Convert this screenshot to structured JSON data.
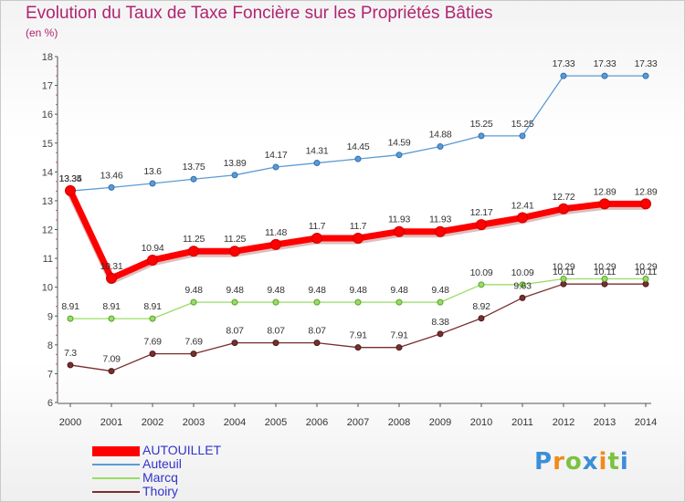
{
  "chart_data": {
    "type": "line",
    "title": "Evolution du Taux de Taxe Foncière sur les Propriétés Bâties",
    "subtitle": "(en %)",
    "xlabel": "",
    "ylabel": "",
    "ylim": [
      6,
      18
    ],
    "yticks": [
      "6",
      "7",
      "8",
      "9",
      "10",
      "11",
      "12",
      "13",
      "14",
      "15",
      "16",
      "17",
      "18"
    ],
    "grid": false,
    "categories": [
      "2000",
      "2001",
      "2002",
      "2003",
      "2004",
      "2005",
      "2006",
      "2007",
      "2008",
      "2009",
      "2010",
      "2011",
      "2012",
      "2013",
      "2014"
    ],
    "series": [
      {
        "name": "AUTOUILLET",
        "color": "#ff0000",
        "values": [
          13.35,
          10.31,
          10.94,
          11.25,
          11.25,
          11.48,
          11.7,
          11.7,
          11.93,
          11.93,
          12.17,
          12.41,
          12.72,
          12.89,
          12.89
        ],
        "labels": [
          "13.35",
          "10.31",
          "10.94",
          "11.25",
          "11.25",
          "11.48",
          "11.7",
          "11.7",
          "11.93",
          "11.93",
          "12.17",
          "12.41",
          "12.72",
          "12.89",
          "12.89"
        ]
      },
      {
        "name": "Auteuil",
        "color": "#5b9bd5",
        "values": [
          13.34,
          13.46,
          13.6,
          13.75,
          13.89,
          14.17,
          14.31,
          14.45,
          14.59,
          14.88,
          15.25,
          15.25,
          17.33,
          17.33,
          17.33
        ],
        "labels": [
          "13.34",
          "13.46",
          "13.6",
          "13.75",
          "13.89",
          "14.17",
          "14.31",
          "14.45",
          "14.59",
          "14.88",
          "15.25",
          "15.25",
          "17.33",
          "17.33",
          "17.33"
        ]
      },
      {
        "name": "Marcq",
        "color": "#99dd66",
        "values": [
          8.91,
          8.91,
          8.91,
          9.48,
          9.48,
          9.48,
          9.48,
          9.48,
          9.48,
          9.48,
          10.09,
          10.09,
          10.29,
          10.29,
          10.29
        ],
        "labels": [
          "8.91",
          "8.91",
          "8.91",
          "9.48",
          "9.48",
          "9.48",
          "9.48",
          "9.48",
          "9.48",
          "9.48",
          "10.09",
          "10.09",
          "10.29",
          "10.29",
          "10.29"
        ]
      },
      {
        "name": "Thoiry",
        "color": "#7a2e2e",
        "values": [
          7.3,
          7.09,
          7.69,
          7.69,
          8.07,
          8.07,
          8.07,
          7.91,
          7.91,
          8.38,
          8.92,
          9.63,
          10.11,
          10.11,
          10.11
        ],
        "labels": [
          "7.3",
          "7.09",
          "7.69",
          "7.69",
          "8.07",
          "8.07",
          "8.07",
          "7.91",
          "7.91",
          "8.38",
          "8.92",
          "9.63",
          "10.11",
          "10.11",
          "10.11"
        ]
      }
    ],
    "legend_position": "bottom-left"
  },
  "logo": {
    "letters": [
      "P",
      "r",
      "o",
      "x",
      "i",
      "t",
      "i"
    ],
    "colors": [
      "#3b8fd8",
      "#f08a1c",
      "#7cc242",
      "#3b8fd8",
      "#f08a1c",
      "#7cc242",
      "#3b8fd8"
    ]
  }
}
